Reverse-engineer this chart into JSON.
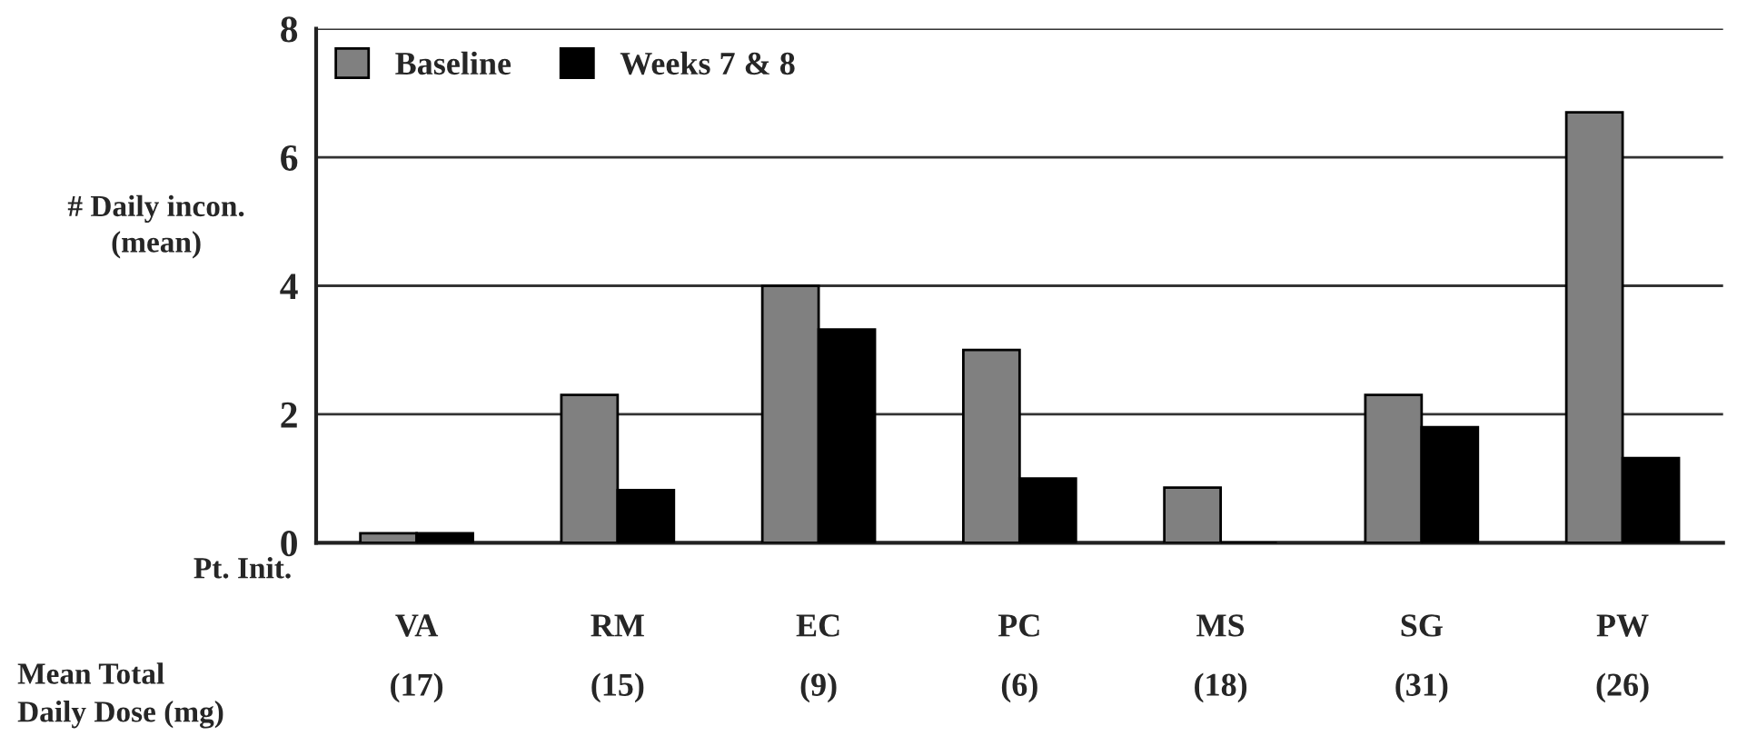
{
  "chart_data": {
    "type": "bar",
    "ylabel": "# Daily incon.\n(mean)",
    "categories": [
      "VA\n(17)",
      "RM\n(15)",
      "EC\n(9)",
      "PC\n(6)",
      "MS\n(18)",
      "SG\n(31)",
      "PW\n(26)"
    ],
    "series": [
      {
        "name": "Baseline",
        "color": "#808080",
        "values": [
          0.15,
          2.3,
          4.0,
          3.0,
          0.86,
          2.3,
          6.7
        ]
      },
      {
        "name": "Weeks 7 & 8",
        "color": "#000000",
        "values": [
          0.15,
          0.82,
          3.32,
          1.0,
          0,
          1.8,
          1.32
        ]
      }
    ],
    "ylim": [
      0,
      8
    ],
    "yticks": [
      0,
      2,
      4,
      6,
      8
    ],
    "grid": "y",
    "legend": "top left",
    "annotations": [
      "Pt. Init.",
      "Mean Total\nDaily Dose (mg)"
    ]
  }
}
